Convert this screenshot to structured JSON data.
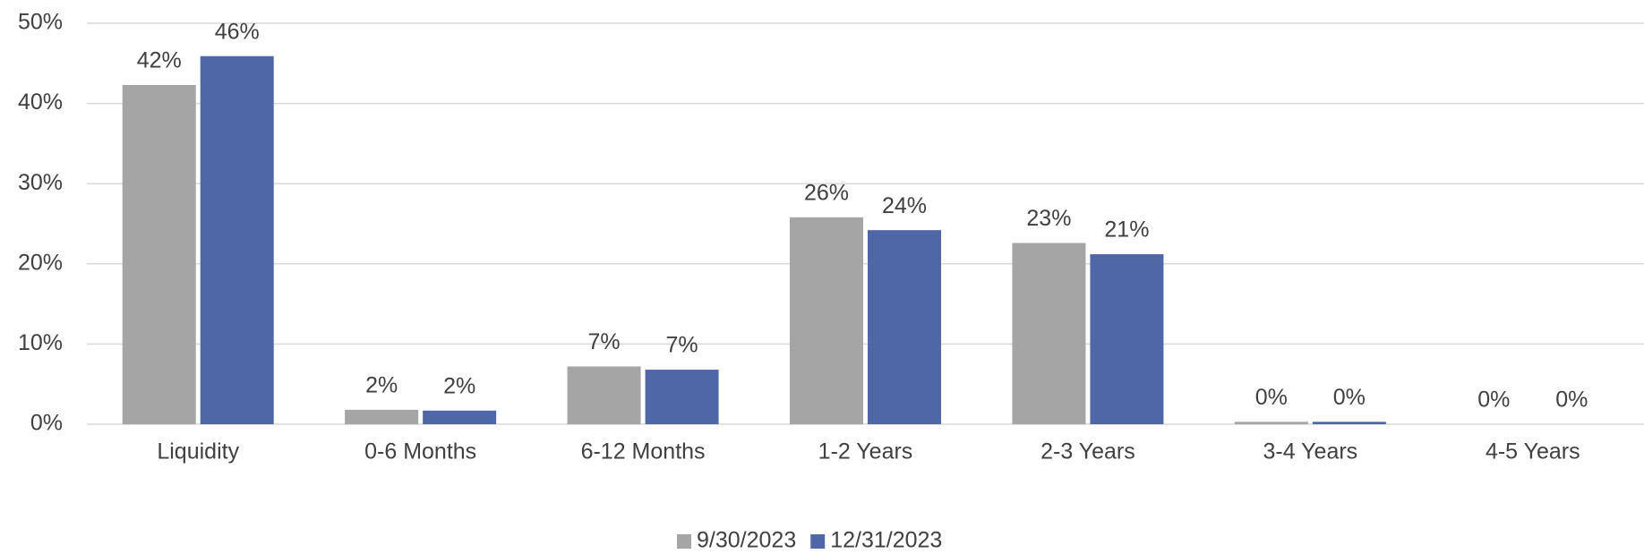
{
  "chart_data": {
    "type": "bar",
    "categories": [
      "Liquidity",
      "0-6 Months",
      "6-12 Months",
      "1-2 Years",
      "2-3 Years",
      "3-4 Years",
      "4-5 Years"
    ],
    "series": [
      {
        "name": "9/30/2023",
        "color": "#a5a5a5",
        "values": [
          42.3,
          1.8,
          7.2,
          25.8,
          22.6,
          0.3,
          0
        ],
        "value_labels": [
          "42%",
          "2%",
          "7%",
          "26%",
          "23%",
          "0%",
          "0%"
        ]
      },
      {
        "name": "12/31/2023",
        "color": "#4f67a6",
        "values": [
          45.9,
          1.7,
          6.8,
          24.2,
          21.2,
          0.3,
          0
        ],
        "value_labels": [
          "46%",
          "2%",
          "7%",
          "24%",
          "21%",
          "0%",
          "0%"
        ]
      }
    ],
    "ylim": [
      0,
      50
    ],
    "yticks": [
      {
        "value": 0,
        "label": "0%"
      },
      {
        "value": 10,
        "label": "10%"
      },
      {
        "value": 20,
        "label": "20%"
      },
      {
        "value": 30,
        "label": "30%"
      },
      {
        "value": 40,
        "label": "40%"
      },
      {
        "value": 50,
        "label": "50%"
      }
    ],
    "grid": true,
    "legend": "bottom"
  }
}
